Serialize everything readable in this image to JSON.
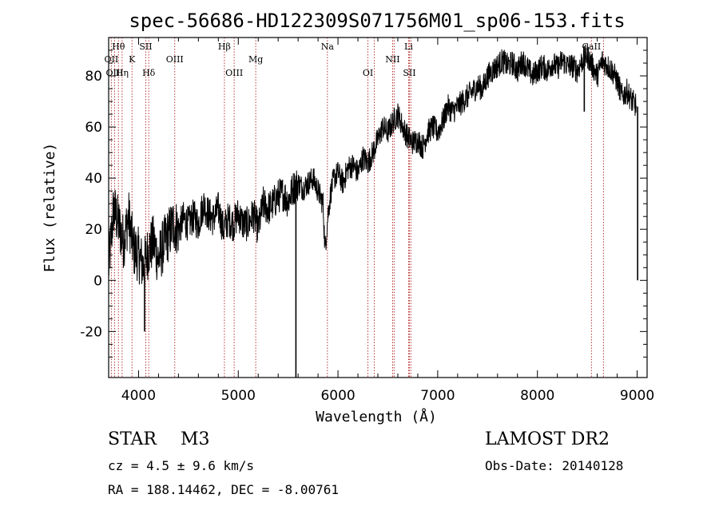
{
  "chart_data": {
    "type": "line",
    "title": "spec-56686-HD122309S071756M01_sp06-153.fits",
    "xlabel": "Wavelength (Å)",
    "ylabel": "Flux (relative)",
    "xlim": [
      3700,
      9100
    ],
    "ylim": [
      -38,
      95
    ],
    "xticks": [
      "4000",
      "5000",
      "6000",
      "7000",
      "8000",
      "9000"
    ],
    "yticks": [
      "-20",
      "0",
      "20",
      "40",
      "60",
      "80"
    ],
    "line_color": "#b22222",
    "series": [
      {
        "x": [
          3700,
          3750,
          3800,
          3850,
          3900,
          3950,
          4000,
          4050,
          4100,
          4150,
          4200,
          4250,
          4300,
          4350,
          4400,
          4450,
          4500,
          4550,
          4600,
          4650,
          4700,
          4750,
          4800,
          4850,
          4900,
          4950,
          5000,
          5050,
          5100,
          5150,
          5200,
          5250,
          5300,
          5350,
          5400,
          5450,
          5500,
          5550,
          5600,
          5650,
          5700,
          5750,
          5800,
          5850,
          5870,
          5900,
          5930,
          5960,
          6000,
          6050,
          6100,
          6150,
          6200,
          6250,
          6300,
          6350,
          6400,
          6450,
          6500,
          6550,
          6600,
          6650,
          6700,
          6750,
          6800,
          6850,
          6900,
          6950,
          7000,
          7050,
          7100,
          7150,
          7200,
          7250,
          7300,
          7350,
          7400,
          7450,
          7500,
          7550,
          7600,
          7650,
          7700,
          7750,
          7800,
          7850,
          7900,
          7950,
          8000,
          8050,
          8100,
          8150,
          8200,
          8250,
          8300,
          8350,
          8400,
          8450,
          8500,
          8550,
          8600,
          8650,
          8700,
          8750,
          8800,
          8850,
          8900,
          8950,
          9000
        ],
        "y": [
          5,
          28,
          22,
          15,
          25,
          12,
          10,
          5,
          12,
          15,
          8,
          14,
          18,
          22,
          20,
          24,
          22,
          25,
          22,
          30,
          26,
          24,
          28,
          20,
          24,
          22,
          26,
          22,
          22,
          26,
          20,
          30,
          28,
          30,
          33,
          34,
          31,
          36,
          38,
          36,
          38,
          40,
          35,
          30,
          12,
          26,
          35,
          40,
          42,
          38,
          44,
          45,
          42,
          48,
          46,
          50,
          55,
          60,
          58,
          62,
          65,
          60,
          56,
          54,
          55,
          52,
          58,
          60,
          58,
          62,
          68,
          66,
          68,
          70,
          72,
          74,
          76,
          75,
          80,
          82,
          84,
          86,
          84,
          85,
          82,
          86,
          83,
          80,
          82,
          84,
          82,
          85,
          83,
          86,
          84,
          84,
          82,
          86,
          88,
          84,
          80,
          86,
          84,
          82,
          78,
          72,
          74,
          70,
          68
        ],
        "spikes": [
          {
            "x": 5578,
            "y": -38
          },
          {
            "x": 4060,
            "y": -20
          },
          {
            "x": 8470,
            "y": 66
          },
          {
            "x": 9005,
            "y": 0
          }
        ]
      }
    ],
    "lines": [
      {
        "label": "Hθ",
        "x": 3798,
        "row": 0
      },
      {
        "label": "OII",
        "x": 3727,
        "row": 1
      },
      {
        "label": "OIII",
        "x": 3760,
        "row": 2
      },
      {
        "label": "Hη",
        "x": 3835,
        "row": 2
      },
      {
        "label": "K",
        "x": 3934,
        "row": 1
      },
      {
        "label": "SII",
        "x": 4072,
        "row": 0
      },
      {
        "label": "Hδ",
        "x": 4102,
        "row": 2
      },
      {
        "label": "OIII",
        "x": 4363,
        "row": 1
      },
      {
        "label": "Hβ",
        "x": 4861,
        "row": 0
      },
      {
        "label": "OIII",
        "x": 4959,
        "row": 2
      },
      {
        "label": "Mg",
        "x": 5175,
        "row": 1
      },
      {
        "label": "Na",
        "x": 5894,
        "row": 0
      },
      {
        "label": "OI",
        "x": 6300,
        "row": 2
      },
      {
        "label": "NII",
        "x": 6548,
        "row": 1
      },
      {
        "label": "Li",
        "x": 6708,
        "row": 0
      },
      {
        "label": "SII",
        "x": 6716,
        "row": 2
      },
      {
        "label": "CaII",
        "x": 8542,
        "row": 0
      }
    ],
    "extra_line_markers": [
      6364,
      6563,
      6731,
      8662
    ]
  },
  "info": {
    "class": "STAR",
    "subclass": "M3",
    "survey": "LAMOST DR2",
    "cz": "cz = 4.5 ± 9.6 km/s",
    "obs_date": "Obs-Date: 20140128",
    "coords": "RA = 188.14462, DEC =  -8.00761"
  }
}
